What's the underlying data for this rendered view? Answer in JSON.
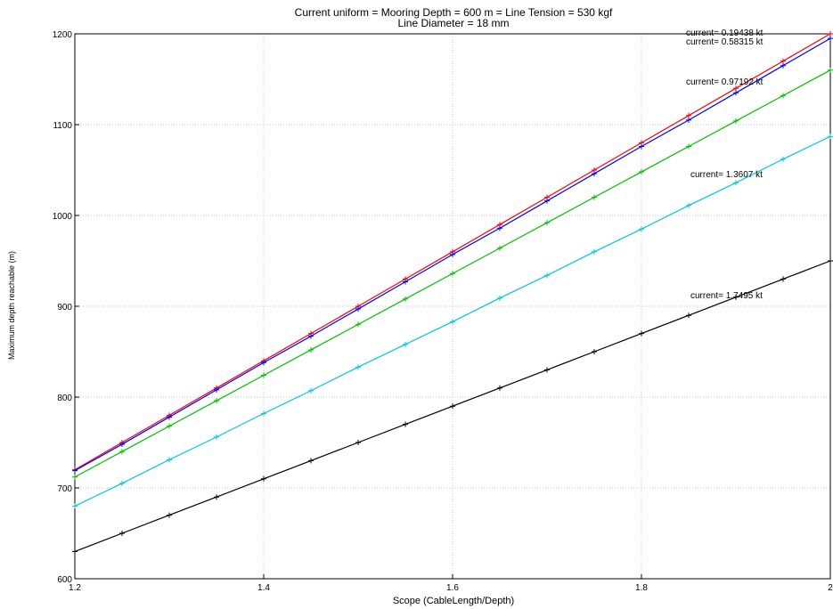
{
  "chart_data": {
    "type": "line",
    "title": "Current uniform  = Mooring Depth = 600 m  =  Line Tension = 530 kgf",
    "subtitle": "Line Diameter = 18 mm",
    "xlabel": "Scope (CableLength/Depth)",
    "ylabel": "Maximum depth reachable (m)",
    "xlim": [
      1.2,
      2.0
    ],
    "ylim": [
      600,
      1200
    ],
    "x_ticks": [
      "1.2",
      "1.4",
      "1.6",
      "1.8",
      "2"
    ],
    "y_ticks": [
      "600",
      "700",
      "800",
      "900",
      "1000",
      "1100",
      "1200"
    ],
    "grid": true,
    "x": [
      1.2,
      1.25,
      1.3,
      1.35,
      1.4,
      1.45,
      1.5,
      1.55,
      1.6,
      1.65,
      1.7,
      1.75,
      1.8,
      1.85,
      1.9,
      1.95,
      2.0
    ],
    "series": [
      {
        "name": "current= 0.19438 kt",
        "color": "#ff0000",
        "values": [
          720,
          750,
          780,
          810,
          840,
          870,
          900,
          930,
          960,
          990,
          1020,
          1050,
          1080,
          1110,
          1140,
          1170,
          1200
        ]
      },
      {
        "name": "current= 0.58315 kt",
        "color": "#0000ff",
        "values": [
          719,
          748,
          778,
          808,
          838,
          867,
          897,
          927,
          957,
          986,
          1016,
          1046,
          1076,
          1105,
          1135,
          1165,
          1195
        ]
      },
      {
        "name": "current= 0.97192 kt",
        "color": "#00c000",
        "values": [
          712,
          740,
          768,
          796,
          824,
          852,
          880,
          908,
          936,
          964,
          992,
          1020,
          1048,
          1076,
          1104,
          1132,
          1160
        ]
      },
      {
        "name": "current= 1.3607 kt",
        "color": "#00c8d8",
        "values": [
          680,
          705,
          731,
          756,
          782,
          807,
          833,
          858,
          883,
          909,
          934,
          960,
          985,
          1011,
          1036,
          1062,
          1087
        ]
      },
      {
        "name": "current= 1.7495 kt",
        "color": "#000000",
        "values": [
          630,
          650,
          670,
          690,
          710,
          730,
          750,
          770,
          790,
          810,
          830,
          850,
          870,
          890,
          910,
          930,
          950
        ]
      }
    ]
  }
}
